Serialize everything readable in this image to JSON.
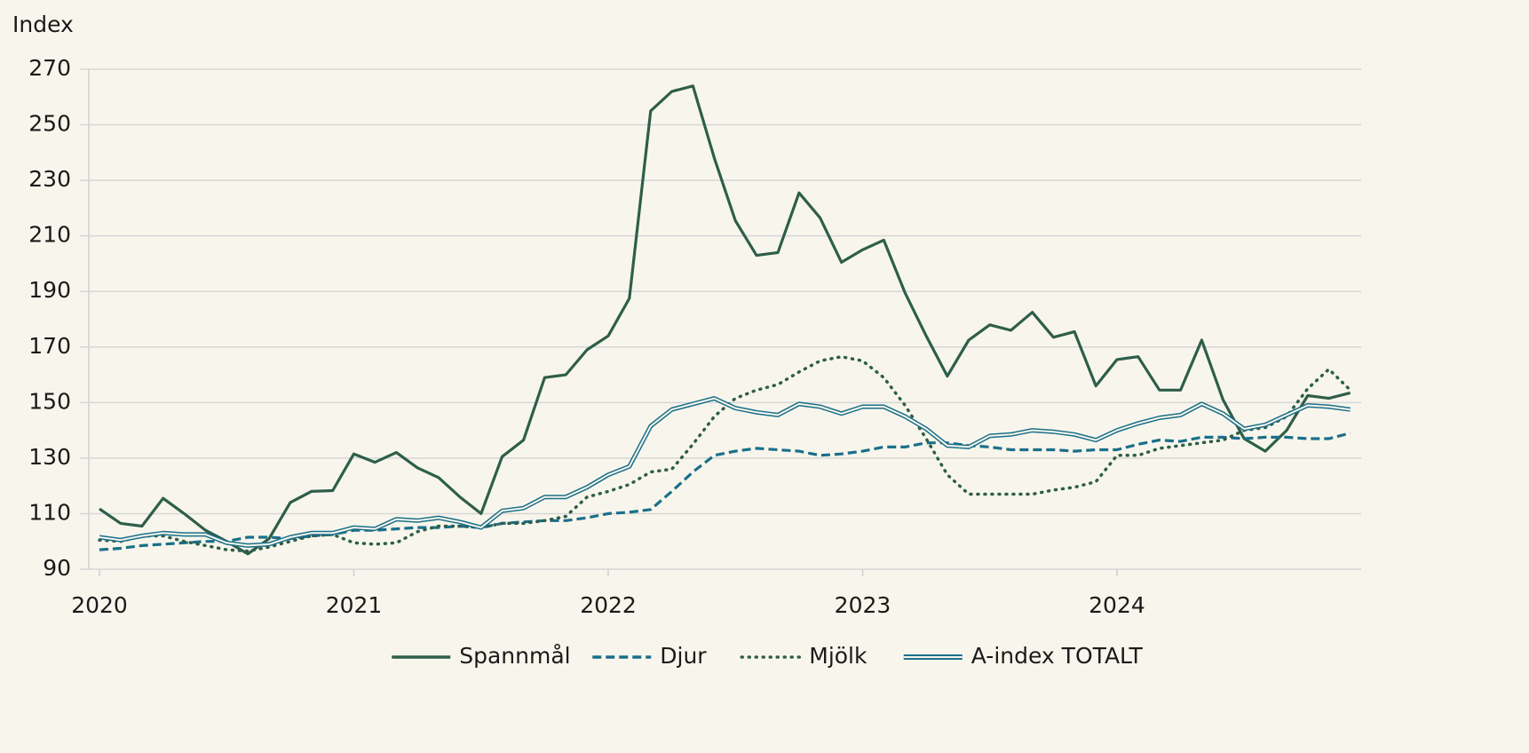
{
  "chart_data": {
    "type": "line",
    "y_label": "Index",
    "x": [
      2020,
      2020.083,
      2020.167,
      2020.25,
      2020.333,
      2020.417,
      2020.5,
      2020.583,
      2020.667,
      2020.75,
      2020.833,
      2020.917,
      2021,
      2021.083,
      2021.167,
      2021.25,
      2021.333,
      2021.417,
      2021.5,
      2021.583,
      2021.667,
      2021.75,
      2021.833,
      2021.917,
      2022,
      2022.083,
      2022.167,
      2022.25,
      2022.333,
      2022.417,
      2022.5,
      2022.583,
      2022.667,
      2022.75,
      2022.833,
      2022.917,
      2023,
      2023.083,
      2023.167,
      2023.25,
      2023.333,
      2023.417,
      2023.5,
      2023.583,
      2023.667,
      2023.75,
      2023.833,
      2023.917,
      2024,
      2024.083,
      2024.167,
      2024.25,
      2024.333,
      2024.417,
      2024.5,
      2024.583,
      2024.667,
      2024.75,
      2024.833,
      2024.917
    ],
    "xlim": [
      2019.958,
      2024.96
    ],
    "xticks": [
      2020,
      2021,
      2022,
      2023,
      2024
    ],
    "ylim": [
      90,
      270
    ],
    "yticks": [
      90,
      110,
      130,
      150,
      170,
      190,
      210,
      230,
      250,
      270
    ],
    "grid": true,
    "legend": "bottom",
    "series": [
      {
        "name": "Spannmål",
        "color": "#2e5e4a",
        "style": "solid",
        "values": [
          111.7,
          106.5,
          105.5,
          115.5,
          110,
          104,
          100,
          95.5,
          101,
          114,
          118,
          118.3,
          131.5,
          128.5,
          132,
          126.5,
          123,
          116,
          110,
          130.5,
          136.5,
          159,
          160,
          169,
          174,
          187.5,
          255,
          262,
          264,
          238,
          215.5,
          203,
          204,
          225.5,
          216.5,
          200.5,
          205,
          208.5,
          189.5,
          174,
          159.5,
          172.5,
          178,
          176,
          182.5,
          173.5,
          175.5,
          156,
          165.5,
          166.5,
          154.5,
          154.5,
          172.5,
          151,
          137,
          132.5,
          140,
          152.5,
          151.5,
          153.5
        ]
      },
      {
        "name": "Djur",
        "color": "#1a6f8a",
        "style": "dashed",
        "values": [
          97,
          97.5,
          98.5,
          99,
          99.5,
          100,
          100,
          101.5,
          101.5,
          101,
          102,
          102.5,
          104,
          104,
          104.5,
          105,
          105,
          105.5,
          105,
          106.5,
          107,
          107.5,
          107.5,
          108.5,
          110,
          110.5,
          111.5,
          118,
          125,
          131,
          132.5,
          133.5,
          133,
          132.5,
          131,
          131.5,
          132.5,
          134,
          134,
          135.5,
          135.5,
          134.5,
          134,
          133,
          133,
          133,
          132.5,
          133,
          133,
          135,
          136.5,
          136,
          137.5,
          137.5,
          137,
          137.5,
          137.5,
          137,
          137,
          139
        ]
      },
      {
        "name": "Mjölk",
        "color": "#2e5e4a",
        "style": "dotted",
        "values": [
          100.5,
          100,
          102,
          102,
          100,
          98.5,
          97,
          96.5,
          98,
          100,
          102,
          102.5,
          99.5,
          99,
          99.5,
          103.5,
          105.5,
          105.5,
          105,
          106.5,
          106.5,
          107.5,
          109,
          116,
          118,
          120.5,
          125,
          126,
          135,
          145,
          151.5,
          154.5,
          156.5,
          161,
          165,
          166.5,
          165,
          159,
          149,
          137,
          124,
          117,
          117,
          117,
          117,
          118.5,
          119.5,
          121.5,
          131,
          131,
          133.5,
          134.5,
          135.5,
          136.5,
          140,
          141,
          145,
          155,
          162,
          154.5
        ]
      },
      {
        "name": "A-index TOTALT",
        "color": "#1a6f8a",
        "style": "double",
        "values": [
          101.5,
          100.5,
          102,
          103,
          102.5,
          102.5,
          99.5,
          98.5,
          99,
          101.5,
          103,
          103,
          105,
          104.5,
          108,
          107.5,
          108.5,
          107,
          105,
          111,
          112,
          116,
          116,
          119.5,
          124,
          127,
          141.5,
          147.5,
          149.5,
          151.5,
          148,
          146.5,
          145.5,
          149.5,
          148.5,
          146,
          148.5,
          148.5,
          145,
          140.5,
          134.5,
          134,
          138,
          138.5,
          140,
          139.5,
          138.5,
          136.5,
          140,
          142.5,
          144.5,
          145.5,
          149.5,
          146,
          140.5,
          142,
          145.5,
          149,
          148.5,
          147.5
        ]
      }
    ]
  }
}
